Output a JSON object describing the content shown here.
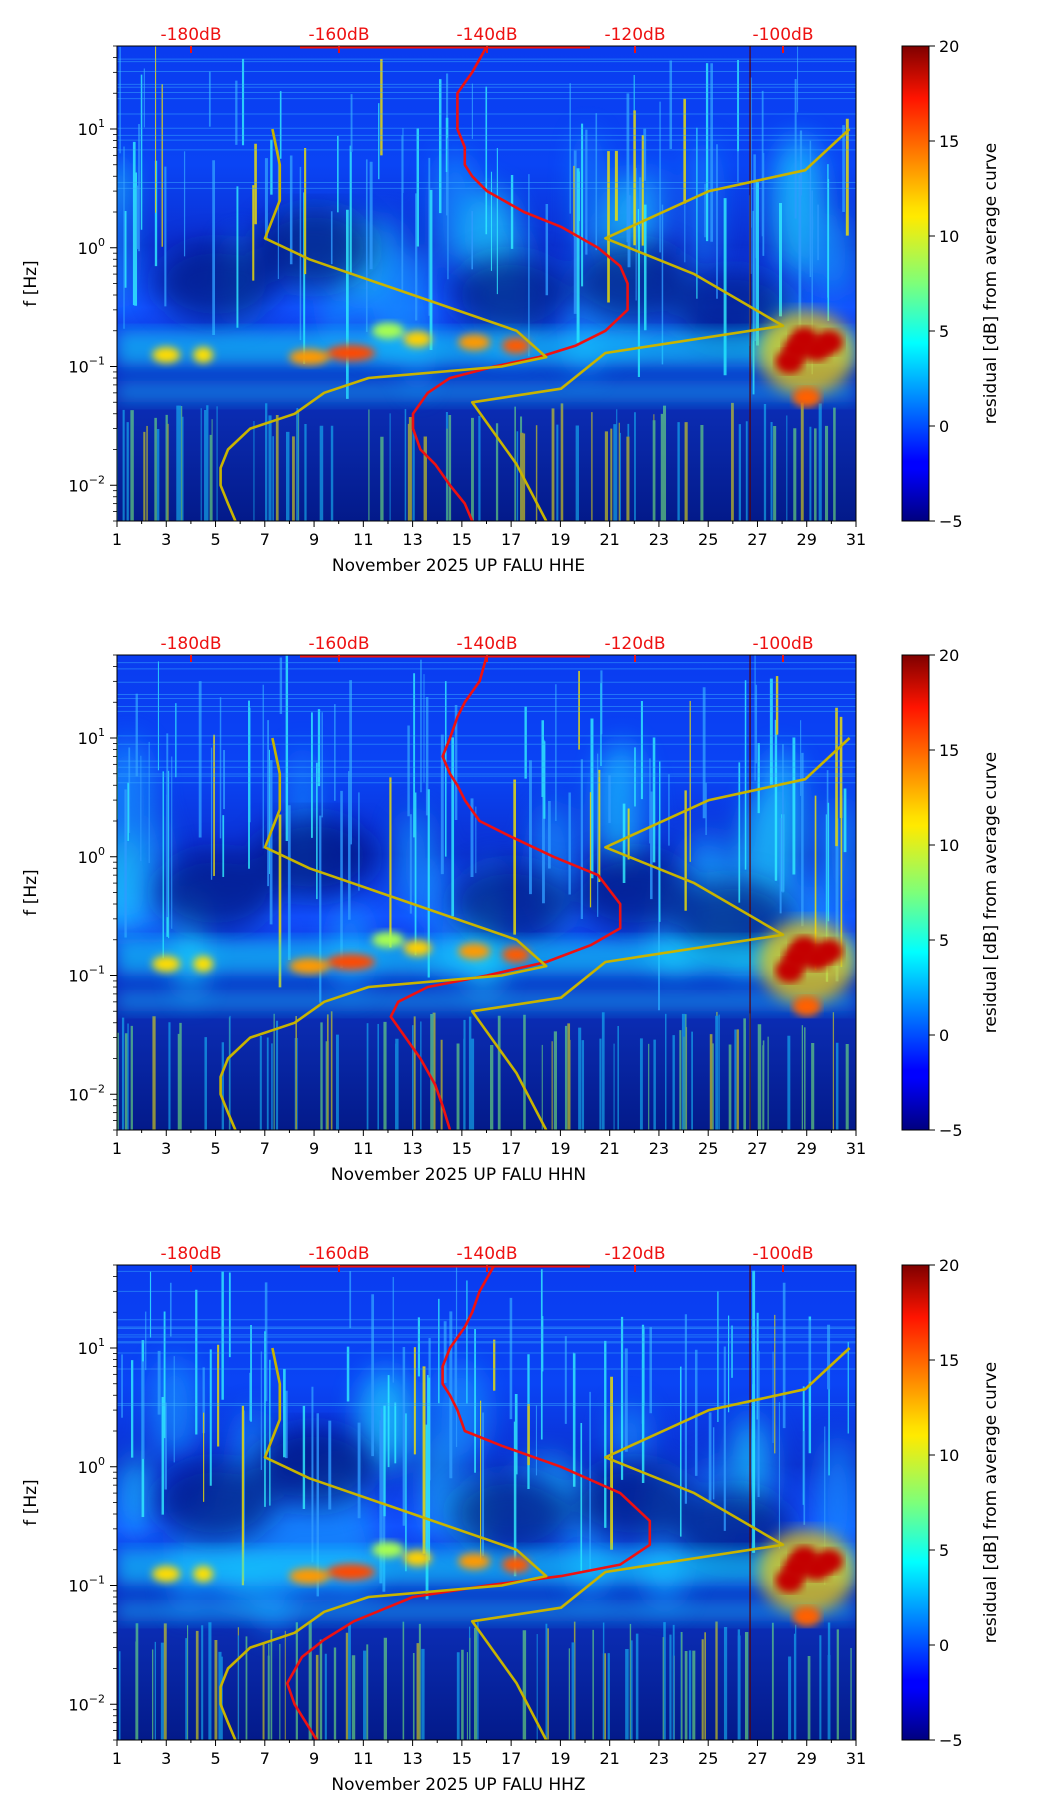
{
  "colors": {
    "nlnm_nhnm": "#c8b400",
    "average_curve": "#ee1111",
    "db_labels": "#ee1111",
    "frame": "#000000"
  },
  "shared": {
    "ylabel": "f [Hz]",
    "colorbar_label": "residual [dB] from average curve",
    "colorbar_ticks": [
      "20",
      "15",
      "10",
      "5",
      "0",
      "−5"
    ],
    "colorbar_range": [
      -5,
      20
    ],
    "colormap": "jet",
    "db_ticks": [
      "-180dB",
      "-160dB",
      "-140dB",
      "-120dB",
      "-100dB"
    ],
    "x_ticks": [
      "1",
      "3",
      "5",
      "7",
      "9",
      "11",
      "13",
      "15",
      "17",
      "19",
      "21",
      "23",
      "25",
      "27",
      "29",
      "31"
    ],
    "y_ticks": [
      {
        "base": "10",
        "exp": "1"
      },
      {
        "base": "10",
        "exp": "0"
      },
      {
        "base": "10",
        "exp": "−1"
      },
      {
        "base": "10",
        "exp": "−2"
      }
    ]
  },
  "panels": [
    {
      "xlabel": "November 2025 UP FALU  HHE"
    },
    {
      "xlabel": "November 2025 UP FALU  HHN"
    },
    {
      "xlabel": "November 2025 UP FALU  HHZ"
    }
  ],
  "chart_data": [
    {
      "type": "heatmap",
      "xlabel": "November 2025 UP FALU  HHE",
      "ylabel": "f [Hz]",
      "xlim": [
        1,
        31
      ],
      "ylim": [
        0.005,
        50
      ],
      "yscale": "log",
      "colorbar": {
        "label": "residual [dB] from average curve",
        "range": [
          -5,
          20
        ]
      },
      "top_axis": {
        "labels": [
          "-180dB",
          "-160dB",
          "-140dB",
          "-120dB",
          "-100dB"
        ],
        "values_db": [
          -180,
          -160,
          -140,
          -120,
          -100
        ]
      },
      "series": [
        {
          "type": "line",
          "x_db": [
            -140,
            -142,
            -144,
            -144,
            -144,
            -143,
            -143,
            -142,
            -140,
            -135,
            -130,
            -125,
            -122,
            -121,
            -121,
            -124,
            -128,
            -133,
            -139,
            -145,
            -148,
            -150,
            -150,
            -149,
            -147,
            -145,
            -143,
            -142
          ],
          "y": [
            50,
            30,
            20,
            15,
            10,
            7,
            5,
            4,
            3,
            2,
            1.5,
            1,
            0.7,
            0.5,
            0.3,
            0.2,
            0.15,
            0.12,
            0.1,
            0.08,
            0.06,
            0.04,
            0.03,
            0.02,
            0.015,
            0.01,
            0.007,
            0.005
          ]
        },
        {
          "type": "line",
          "x_db": [
            -169,
            -168,
            -168,
            -170,
            -164,
            -150,
            -136,
            -132,
            -138,
            -156,
            -162,
            -166,
            -172,
            -175,
            -176,
            -176,
            -175,
            -174
          ],
          "y": [
            10,
            5,
            2.5,
            1.2,
            0.8,
            0.4,
            0.2,
            0.12,
            0.1,
            0.08,
            0.06,
            0.04,
            0.03,
            0.02,
            0.014,
            0.01,
            0.007,
            0.005
          ]
        },
        {
          "type": "line",
          "x_db": [
            -91,
            -97,
            -110,
            -124,
            -112,
            -100,
            -124,
            -130,
            -142,
            -136,
            -132
          ],
          "y": [
            10,
            4.5,
            3,
            1.2,
            0.6,
            0.22,
            0.13,
            0.065,
            0.05,
            0.015,
            0.005
          ]
        }
      ]
    },
    {
      "type": "heatmap",
      "xlabel": "November 2025 UP FALU  HHN",
      "ylabel": "f [Hz]",
      "xlim": [
        1,
        31
      ],
      "ylim": [
        0.005,
        50
      ],
      "yscale": "log",
      "colorbar": {
        "label": "residual [dB] from average curve",
        "range": [
          -5,
          20
        ]
      },
      "top_axis": {
        "labels": [
          "-180dB",
          "-160dB",
          "-140dB",
          "-120dB",
          "-100dB"
        ],
        "values_db": [
          -180,
          -160,
          -140,
          -120,
          -100
        ]
      },
      "series": [
        {
          "type": "line",
          "x_db": [
            -140,
            -141,
            -143,
            -144,
            -145,
            -146,
            -145,
            -144,
            -143,
            -141,
            -137,
            -131,
            -125,
            -122,
            -122,
            -126,
            -132,
            -140,
            -148,
            -152,
            -153,
            -151,
            -149,
            -147,
            -146,
            -145
          ],
          "y": [
            50,
            30,
            20,
            15,
            10,
            7,
            5,
            4,
            3,
            2,
            1.5,
            1,
            0.7,
            0.4,
            0.25,
            0.18,
            0.13,
            0.1,
            0.08,
            0.06,
            0.045,
            0.03,
            0.02,
            0.012,
            0.008,
            0.005
          ]
        },
        {
          "type": "line",
          "x_db": [
            -169,
            -168,
            -168,
            -170,
            -164,
            -150,
            -136,
            -132,
            -138,
            -156,
            -162,
            -166,
            -172,
            -175,
            -176,
            -176,
            -175,
            -174
          ],
          "y": [
            10,
            5,
            2.5,
            1.2,
            0.8,
            0.4,
            0.2,
            0.12,
            0.1,
            0.08,
            0.06,
            0.04,
            0.03,
            0.02,
            0.014,
            0.01,
            0.007,
            0.005
          ]
        },
        {
          "type": "line",
          "x_db": [
            -91,
            -97,
            -110,
            -124,
            -112,
            -100,
            -124,
            -130,
            -142,
            -136,
            -132
          ],
          "y": [
            10,
            4.5,
            3,
            1.2,
            0.6,
            0.22,
            0.13,
            0.065,
            0.05,
            0.015,
            0.005
          ]
        }
      ]
    },
    {
      "type": "heatmap",
      "xlabel": "November 2025 UP FALU  HHZ",
      "ylabel": "f [Hz]",
      "xlim": [
        1,
        31
      ],
      "ylim": [
        0.005,
        50
      ],
      "yscale": "log",
      "colorbar": {
        "label": "residual [dB] from average curve",
        "range": [
          -5,
          20
        ]
      },
      "top_axis": {
        "labels": [
          "-180dB",
          "-160dB",
          "-140dB",
          "-120dB",
          "-100dB"
        ],
        "values_db": [
          -180,
          -160,
          -140,
          -120,
          -100
        ]
      },
      "series": [
        {
          "type": "line",
          "x_db": [
            -139,
            -141,
            -142,
            -143,
            -145,
            -146,
            -146,
            -145,
            -144,
            -143,
            -138,
            -130,
            -122,
            -118,
            -118,
            -122,
            -130,
            -140,
            -150,
            -158,
            -162,
            -165,
            -167,
            -166,
            -163
          ],
          "y": [
            50,
            30,
            20,
            15,
            10,
            7,
            5,
            4,
            3,
            2,
            1.5,
            1,
            0.6,
            0.35,
            0.22,
            0.15,
            0.12,
            0.1,
            0.08,
            0.05,
            0.035,
            0.025,
            0.015,
            0.01,
            0.005
          ]
        },
        {
          "type": "line",
          "x_db": [
            -169,
            -168,
            -168,
            -170,
            -164,
            -150,
            -136,
            -132,
            -138,
            -156,
            -162,
            -166,
            -172,
            -175,
            -176,
            -176,
            -175,
            -174
          ],
          "y": [
            10,
            5,
            2.5,
            1.2,
            0.8,
            0.4,
            0.2,
            0.12,
            0.1,
            0.08,
            0.06,
            0.04,
            0.03,
            0.02,
            0.014,
            0.01,
            0.007,
            0.005
          ]
        },
        {
          "type": "line",
          "x_db": [
            -91,
            -97,
            -110,
            -124,
            -112,
            -100,
            -124,
            -130,
            -142,
            -136,
            -132
          ],
          "y": [
            10,
            4.5,
            3,
            1.2,
            0.6,
            0.22,
            0.13,
            0.065,
            0.05,
            0.015,
            0.005
          ]
        }
      ]
    }
  ]
}
